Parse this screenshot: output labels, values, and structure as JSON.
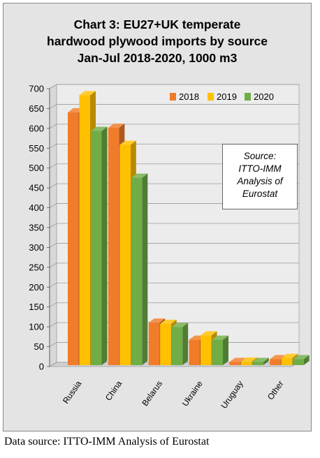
{
  "title_lines": [
    "Chart 3: EU27+UK temperate",
    "hardwood plywood imports by source",
    "Jan-Jul 2018-2020, 1000 m3"
  ],
  "source_note_lines": [
    "Source:",
    "ITTO-IMM",
    "Analysis of",
    "Eurostat"
  ],
  "footer": "Data source: ITTO-IMM Analysis of Eurostat",
  "chart_data": {
    "type": "bar",
    "title": "Chart 3: EU27+UK temperate hardwood plywood imports by source Jan-Jul 2018-2020, 1000 m3",
    "categories": [
      "Russia",
      "China",
      "Belarus",
      "Ukraine",
      "Uruguay",
      "Other"
    ],
    "series": [
      {
        "name": "2018",
        "color": "#f07c2a",
        "values": [
          637,
          598,
          107,
          64,
          8,
          15
        ]
      },
      {
        "name": "2019",
        "color": "#ffc000",
        "values": [
          680,
          555,
          104,
          75,
          9,
          18
        ]
      },
      {
        "name": "2020",
        "color": "#70ad47",
        "values": [
          590,
          472,
          96,
          64,
          8,
          15
        ]
      }
    ],
    "yticks": [
      0,
      50,
      100,
      150,
      200,
      250,
      300,
      350,
      400,
      450,
      500,
      550,
      600,
      650,
      700
    ],
    "ylim": [
      0,
      700
    ],
    "grid": true,
    "legend_position": "top-right",
    "three_d": true
  }
}
